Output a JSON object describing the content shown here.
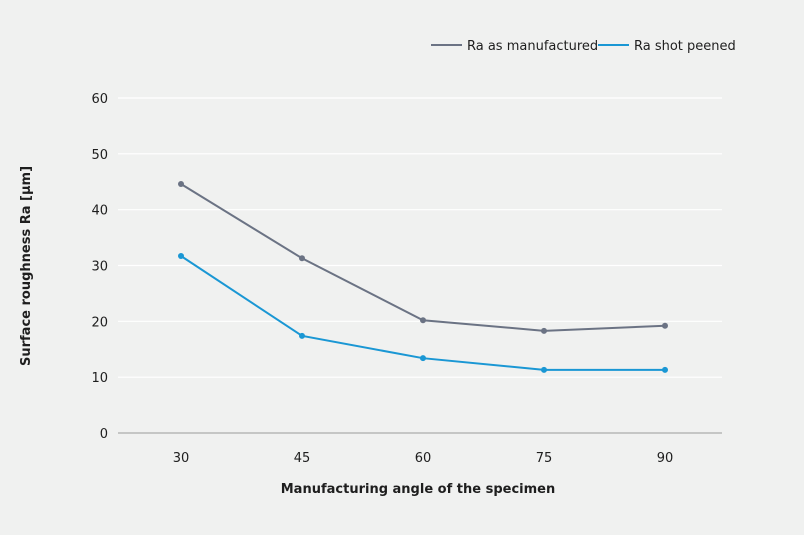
{
  "chart_data": {
    "type": "line",
    "title": "",
    "xlabel": "Manufacturing angle of the specimen",
    "ylabel": "Surface roughness Ra [µm]",
    "x": [
      30,
      45,
      60,
      75,
      90
    ],
    "x_tick_labels": [
      "30",
      "45",
      "60",
      "75",
      "90"
    ],
    "ylim": [
      0,
      60
    ],
    "y_ticks": [
      0,
      10,
      20,
      30,
      40,
      50,
      60
    ],
    "y_tick_labels": [
      "0",
      "10",
      "20",
      "30",
      "40",
      "50",
      "60"
    ],
    "grid": true,
    "legend_position": "top-right",
    "series": [
      {
        "name": "Ra as manufactured",
        "color": "#6b7384",
        "values": [
          44.6,
          31.3,
          20.2,
          18.3,
          19.2
        ]
      },
      {
        "name": "Ra shot peened",
        "color": "#1a97d4",
        "values": [
          31.7,
          17.4,
          13.4,
          11.3,
          11.3
        ]
      }
    ]
  }
}
